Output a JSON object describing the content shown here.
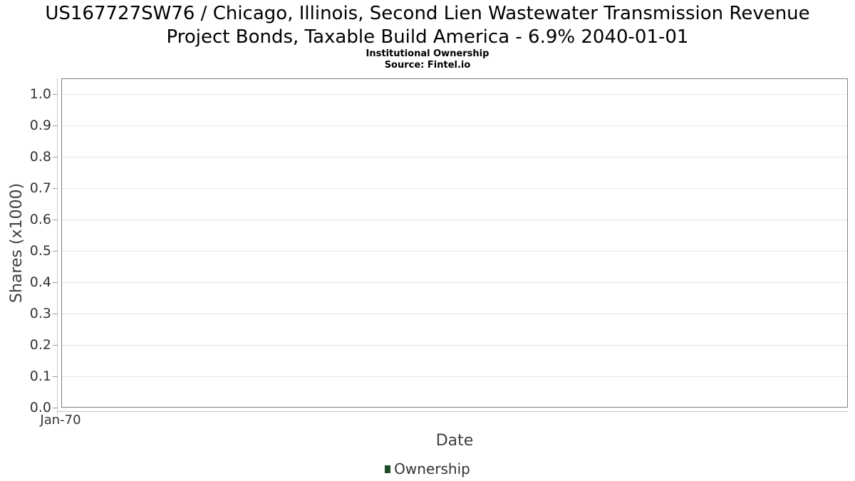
{
  "header": {
    "title_line1": "US167727SW76 / Chicago, Illinois, Second Lien Wastewater Transmission Revenue",
    "title_line2": "Project Bonds, Taxable Build America - 6.9% 2040-01-01",
    "subtitle": "Institutional Ownership",
    "source": "Source: Fintel.io"
  },
  "axes": {
    "y_title": "Shares (x1000)",
    "x_title": "Date",
    "x_tick": "Jan-70"
  },
  "legend": {
    "label": "Ownership",
    "marker_color": "#1d4d2b"
  },
  "colors": {
    "plot_border": "#808080",
    "gridline": "#e6e6e6",
    "axis_line": "#c9c9c9",
    "tick_mark": "#9a9a9a",
    "tick_text": "#333333",
    "axis_title_text": "#404040",
    "title_text": "#000000"
  },
  "chart_data": {
    "type": "line",
    "title": "US167727SW76 / Chicago, Illinois, Second Lien Wastewater Transmission Revenue Project Bonds, Taxable Build America - 6.9% 2040-01-01",
    "subtitle": "Institutional Ownership",
    "source": "Source: Fintel.io",
    "xlabel": "Date",
    "ylabel": "Shares (x1000)",
    "x_tick_labels": [
      "Jan-70"
    ],
    "y_ticks": [
      0.0,
      0.1,
      0.2,
      0.3,
      0.4,
      0.5,
      0.6,
      0.7,
      0.8,
      0.9,
      1.0
    ],
    "y_tick_labels": [
      "0.0",
      "0.1",
      "0.2",
      "0.3",
      "0.4",
      "0.5",
      "0.6",
      "0.7",
      "0.8",
      "0.9",
      "1.0"
    ],
    "ylim": [
      0.0,
      1.05
    ],
    "grid": true,
    "legend_position": "bottom-center",
    "series": [
      {
        "name": "Ownership",
        "color": "#1d4d2b",
        "x": [],
        "values": []
      }
    ]
  }
}
